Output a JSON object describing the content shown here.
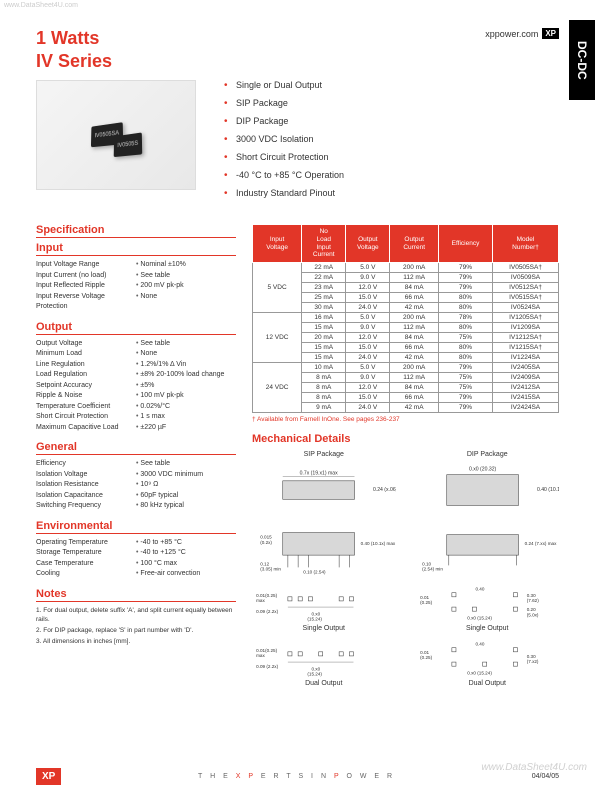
{
  "watermarks": {
    "top": "www.DataSheet4U.com",
    "bottom": "www.DataSheet4U.com"
  },
  "sideTab": "DC-DC",
  "header": {
    "watts": "1 Watts",
    "series": "IV Series",
    "brandSite": "xppower.com",
    "brandLogo": "XP"
  },
  "productChips": [
    "IV0505SA",
    "IV0505S"
  ],
  "features": [
    "Single or Dual Output",
    "SIP Package",
    "DIP Package",
    "3000 VDC Isolation",
    "Short Circuit Protection",
    "-40 °C to +85 °C Operation",
    "Industry Standard Pinout"
  ],
  "specTitle": "Specification",
  "sections": {
    "input": {
      "title": "Input",
      "rows": [
        {
          "label": "Input Voltage Range",
          "val": "Nominal ±10%"
        },
        {
          "label": "Input Current (no load)",
          "val": "See table"
        },
        {
          "label": "Input Reflected Ripple",
          "val": "200 mV pk-pk"
        },
        {
          "label": "Input Reverse Voltage Protection",
          "val": "None"
        }
      ]
    },
    "output": {
      "title": "Output",
      "rows": [
        {
          "label": "Output Voltage",
          "val": "See table"
        },
        {
          "label": "Minimum Load",
          "val": "None"
        },
        {
          "label": "Line Regulation",
          "val": "1.2%/1% Δ Vin"
        },
        {
          "label": "Load Regulation",
          "val": "±8% 20-100% load change"
        },
        {
          "label": "Setpoint Accuracy",
          "val": "±5%"
        },
        {
          "label": "Ripple & Noise",
          "val": "100 mV pk-pk"
        },
        {
          "label": "Temperature Coefficient",
          "val": "0.02%/°C"
        },
        {
          "label": "Short Circuit Protection",
          "val": "1 s max"
        },
        {
          "label": "Maximum Capacitive Load",
          "val": "±220 µF"
        }
      ]
    },
    "general": {
      "title": "General",
      "rows": [
        {
          "label": "Efficiency",
          "val": "See table"
        },
        {
          "label": "Isolation Voltage",
          "val": "3000 VDC minimum"
        },
        {
          "label": "Isolation Resistance",
          "val": "10⁹ Ω"
        },
        {
          "label": "Isolation Capacitance",
          "val": "60pF typical"
        },
        {
          "label": "Switching Frequency",
          "val": "80 kHz typical"
        }
      ]
    },
    "env": {
      "title": "Environmental",
      "rows": [
        {
          "label": "Operating Temperature",
          "val": "-40 to +85 °C"
        },
        {
          "label": "Storage Temperature",
          "val": "-40 to +125 °C"
        },
        {
          "label": "Case Temperature",
          "val": "100 °C max"
        },
        {
          "label": "Cooling",
          "val": "Free-air convection"
        }
      ]
    },
    "notes": {
      "title": "Notes",
      "items": [
        "1. For dual output, delete suffix 'A', and split current equally between rails.",
        "2. For DIP package, replace 'S' in part number with 'D'.",
        "3. All dimensions in inches [mm]."
      ]
    }
  },
  "table": {
    "headers": [
      "Input Voltage",
      "No Load Input Current",
      "Output Voltage",
      "Output Current",
      "Efficiency",
      "Model Number†"
    ],
    "groups": [
      {
        "v": "5 VDC",
        "rows": [
          [
            "22 mA",
            "5.0 V",
            "200 mA",
            "79%",
            "IV0505SA†"
          ],
          [
            "22 mA",
            "9.0 V",
            "112 mA",
            "79%",
            "IV0509SA"
          ],
          [
            "23 mA",
            "12.0 V",
            "84 mA",
            "79%",
            "IV0512SA†"
          ],
          [
            "25 mA",
            "15.0 V",
            "66 mA",
            "80%",
            "IV0515SA†"
          ],
          [
            "30 mA",
            "24.0 V",
            "42 mA",
            "80%",
            "IV0524SA"
          ]
        ]
      },
      {
        "v": "12 VDC",
        "rows": [
          [
            "16 mA",
            "5.0 V",
            "200 mA",
            "78%",
            "IV1205SA†"
          ],
          [
            "15 mA",
            "9.0 V",
            "112 mA",
            "80%",
            "IV1209SA"
          ],
          [
            "20 mA",
            "12.0 V",
            "84 mA",
            "75%",
            "IV1212SA†"
          ],
          [
            "15 mA",
            "15.0 V",
            "66 mA",
            "80%",
            "IV1215SA†"
          ],
          [
            "15 mA",
            "24.0 V",
            "42 mA",
            "80%",
            "IV1224SA"
          ]
        ]
      },
      {
        "v": "24 VDC",
        "rows": [
          [
            "10 mA",
            "5.0 V",
            "200 mA",
            "79%",
            "IV2405SA"
          ],
          [
            "8 mA",
            "9.0 V",
            "112 mA",
            "75%",
            "IV2409SA"
          ],
          [
            "8 mA",
            "12.0 V",
            "84 mA",
            "75%",
            "IV2412SA"
          ],
          [
            "8 mA",
            "15.0 V",
            "66 mA",
            "79%",
            "IV2415SA"
          ],
          [
            "9 mA",
            "24.0 V",
            "42 mA",
            "79%",
            "IV2424SA"
          ]
        ]
      }
    ],
    "footnote": "† Available from Farnell InOne. See pages 236-237"
  },
  "mechanical": {
    "title": "Mechanical Details",
    "packages": [
      {
        "top": "SIP Package",
        "dims": "0.7x (19.x1) max / 0.24 (x.06) max"
      },
      {
        "top": "DIP Package",
        "dims": "0.x0 (20.32) / 0.40 (10.1x) max"
      }
    ],
    "rowLabels": [
      "",
      "Single Output",
      "Dual Output"
    ],
    "dimensions": {
      "sip_top": [
        "0.7x (19.x1) max",
        "0.24 (x.06) max"
      ],
      "dip_top": [
        "0.x0 (20.32)",
        "0.40 (10.1x) max"
      ],
      "sip_side": [
        "0.015 (0.2x)",
        "0.40 (10.1x) max",
        "0.12 (3.05) min",
        "0.10 (2.54)"
      ],
      "dip_side": [
        "0.24 (7.xx) max",
        "0.10 (2.54) min"
      ],
      "sip_single": [
        "0.01(0.25) max",
        "0.09 (2.2x)",
        "0.x0 (15.24)"
      ],
      "dip_single": [
        "0.01 (0.25)",
        "0.40",
        "0.x0 (15.24)",
        "0.30 (7.62)",
        "0.20 (5.0x)"
      ],
      "sip_dual": [
        "0.01(0.25) max",
        "0.09 (2.2x)",
        "0.x0 (15.24)"
      ],
      "dip_dual": [
        "0.01 (0.25)",
        "0.40",
        "0.x0 (15.24)",
        "0.30 (7.x2)"
      ]
    }
  },
  "footer": {
    "logo": "XP",
    "tagline": "THE XPERTS IN POWER",
    "date": "04/04/05"
  },
  "colors": {
    "brand_red": "#e23628",
    "text": "#333333",
    "border": "#999999",
    "bg": "#ffffff"
  }
}
